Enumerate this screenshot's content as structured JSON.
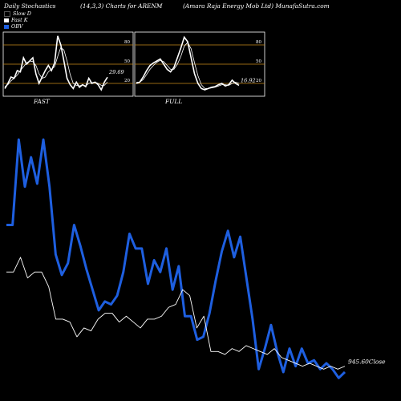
{
  "header": {
    "left": "Daily Stochastics",
    "middle": "(14,3,3) Charts for ARENM",
    "right": "(Amara Raja Energy Mob Ltd) MunafaSutra.com"
  },
  "legend": [
    {
      "label": "Slow D",
      "color": "#000000"
    },
    {
      "label": "Fast K",
      "color": "#ffffff"
    },
    {
      "label": "OBV",
      "color": "#1e5fe0"
    }
  ],
  "colors": {
    "background": "#000000",
    "obv": "#1e5fe0",
    "price": "#ffffff",
    "level_lines": "#c98a1a",
    "panel_border": "#ffffff"
  },
  "chart_data": [
    {
      "type": "line",
      "panel": "FAST",
      "title": "FAST",
      "ylim": [
        0,
        100
      ],
      "levels": [
        20,
        50,
        80
      ],
      "level_labels": [
        "20",
        "50",
        "80"
      ],
      "last_value_label": "29.69",
      "series": [
        {
          "name": "Fast K",
          "values": [
            12,
            20,
            30,
            28,
            40,
            38,
            60,
            50,
            55,
            60,
            35,
            20,
            30,
            40,
            48,
            40,
            52,
            94,
            80,
            55,
            28,
            18,
            12,
            22,
            14,
            18,
            15,
            28,
            20,
            22,
            18,
            10,
            22,
            29.69
          ]
        },
        {
          "name": "Slow D",
          "values": [
            15,
            18,
            24,
            28,
            33,
            40,
            46,
            52,
            55,
            54,
            48,
            35,
            28,
            30,
            38,
            42,
            46,
            62,
            76,
            72,
            55,
            34,
            20,
            17,
            16,
            18,
            16,
            20,
            21,
            22,
            20,
            17,
            17,
            22
          ]
        }
      ]
    },
    {
      "type": "line",
      "panel": "FULL",
      "title": "FULL",
      "ylim": [
        0,
        100
      ],
      "levels": [
        20,
        50,
        80
      ],
      "level_labels": [
        "20",
        "50",
        "80"
      ],
      "last_value_label": "16.92",
      "series": [
        {
          "name": "Full K",
          "values": [
            20,
            22,
            30,
            40,
            48,
            52,
            55,
            58,
            50,
            42,
            38,
            45,
            60,
            75,
            92,
            85,
            60,
            35,
            20,
            12,
            10,
            12,
            14,
            15,
            18,
            20,
            16,
            18,
            25,
            20,
            16.92
          ]
        },
        {
          "name": "Full D",
          "values": [
            22,
            22,
            26,
            34,
            42,
            48,
            53,
            56,
            54,
            48,
            42,
            42,
            50,
            62,
            78,
            84,
            74,
            52,
            32,
            18,
            12,
            12,
            13,
            14,
            16,
            18,
            18,
            17,
            20,
            22,
            20
          ]
        }
      ]
    },
    {
      "type": "line",
      "panel": "price-obv",
      "close_label": "945.60Close",
      "series": [
        {
          "name": "OBV",
          "values": [
            59,
            59,
            88,
            72,
            82,
            73,
            88,
            72,
            49,
            42,
            46,
            59,
            52,
            44,
            37,
            30,
            33,
            32,
            35,
            43,
            56,
            51,
            51,
            39,
            47,
            43,
            51,
            37,
            45,
            28,
            28,
            20,
            21,
            29,
            40,
            50,
            57,
            48,
            55,
            41,
            27,
            10,
            17,
            25,
            16,
            9,
            17,
            11,
            17,
            12,
            13,
            10,
            12,
            10,
            7,
            9
          ]
        },
        {
          "name": "Price",
          "values": [
            43,
            43,
            48,
            41,
            43,
            43,
            38,
            27,
            27,
            26,
            21,
            24,
            23,
            27,
            29,
            29,
            26,
            28,
            26,
            24,
            27,
            27,
            28,
            31,
            32,
            37,
            35,
            24,
            28,
            16,
            16,
            15,
            17,
            16,
            18,
            17,
            16,
            15,
            17,
            14,
            13,
            12,
            11,
            12,
            11,
            10,
            11,
            10,
            11
          ]
        }
      ]
    }
  ]
}
